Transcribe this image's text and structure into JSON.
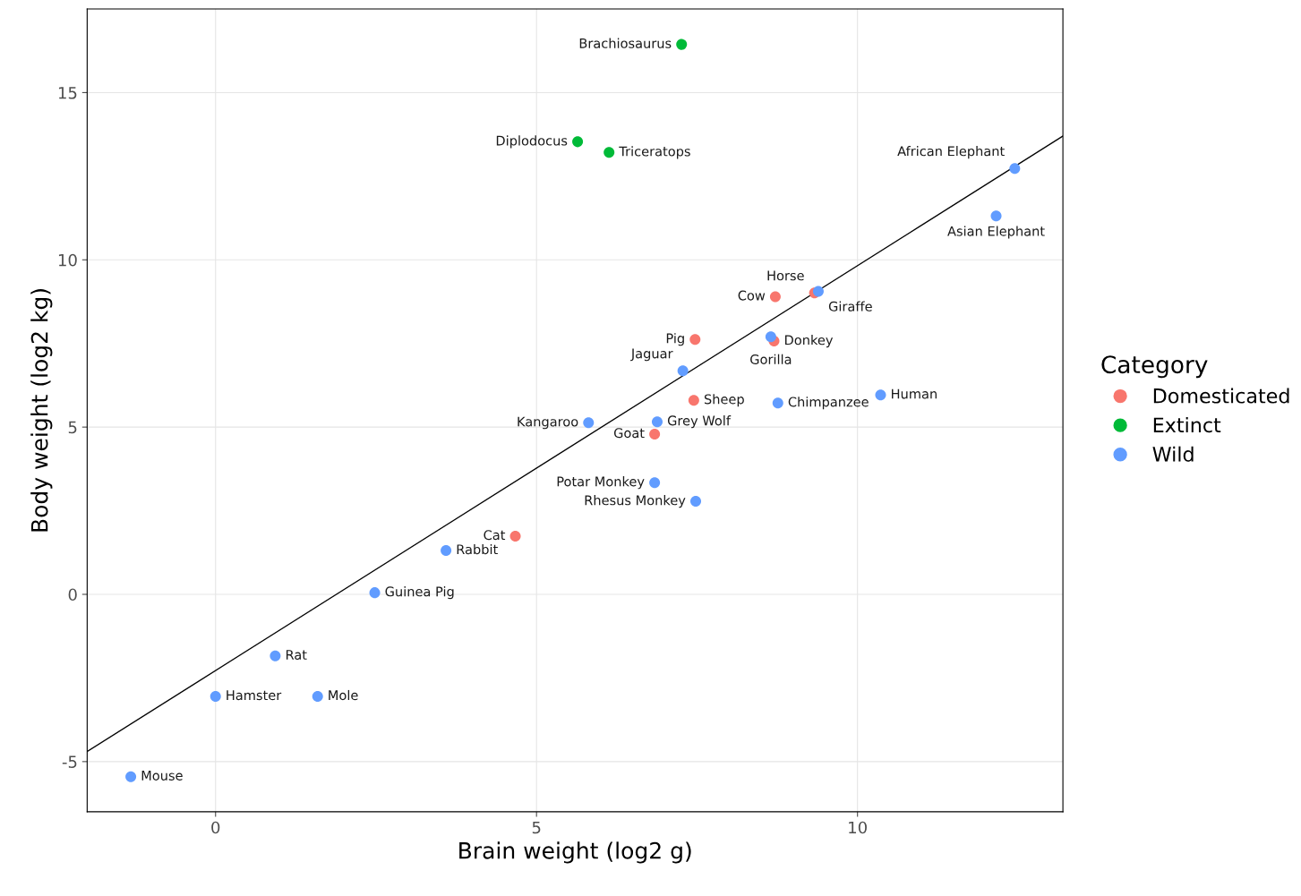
{
  "chart_data": {
    "type": "scatter",
    "xlabel": "Brain weight (log2 g)",
    "ylabel": "Body weight (log2 kg)",
    "legend_title": "Category",
    "xlim": [
      -2,
      13.2
    ],
    "ylim": [
      -6.5,
      17.5
    ],
    "xticks": [
      0,
      5,
      10
    ],
    "yticks": [
      -5,
      0,
      5,
      10,
      15
    ],
    "grid": true,
    "legend": "right",
    "marker": "circle",
    "series": [
      {
        "name": "Domesticated",
        "color": "#f8766d",
        "x": [
          9.33,
          8.72,
          7.47,
          8.7,
          7.45,
          6.84,
          4.67
        ],
        "values": [
          9.01,
          8.9,
          7.62,
          7.57,
          5.8,
          4.79,
          1.74
        ]
      },
      {
        "name": "Extinct",
        "color": "#00ba38",
        "x": [
          7.26,
          5.64,
          6.13
        ],
        "values": [
          16.44,
          13.53,
          13.21
        ]
      },
      {
        "name": "Wild",
        "color": "#619cff",
        "x": [
          12.45,
          12.16,
          9.39,
          8.65,
          7.28,
          8.76,
          10.36,
          6.88,
          5.81,
          6.84,
          7.48,
          3.59,
          2.48,
          0.93,
          0.0,
          1.59,
          -1.32
        ],
        "values": [
          12.73,
          11.31,
          9.06,
          7.7,
          6.68,
          5.72,
          5.96,
          5.16,
          5.13,
          3.34,
          2.78,
          1.31,
          0.05,
          -1.84,
          -3.05,
          -3.05,
          -5.45
        ]
      },
      {
        "type": "line",
        "marker": "none",
        "color": "#000000",
        "x": [
          -2,
          13.2
        ],
        "values": [
          -4.7,
          13.7
        ]
      }
    ],
    "annotations": [
      {
        "text": "Horse",
        "x": 9.33,
        "y": 9.01
      },
      {
        "text": "Cow",
        "x": 8.72,
        "y": 8.9
      },
      {
        "text": "Pig",
        "x": 7.47,
        "y": 7.62
      },
      {
        "text": "Donkey",
        "x": 8.7,
        "y": 7.57
      },
      {
        "text": "Sheep",
        "x": 7.45,
        "y": 5.8
      },
      {
        "text": "Goat",
        "x": 6.84,
        "y": 4.79
      },
      {
        "text": "Cat",
        "x": 4.67,
        "y": 1.74
      },
      {
        "text": "Brachiosaurus",
        "x": 7.26,
        "y": 16.44
      },
      {
        "text": "Diplodocus",
        "x": 5.64,
        "y": 13.53
      },
      {
        "text": "Triceratops",
        "x": 6.13,
        "y": 13.21
      },
      {
        "text": "African Elephant",
        "x": 12.45,
        "y": 12.73
      },
      {
        "text": "Asian Elephant",
        "x": 12.16,
        "y": 11.31
      },
      {
        "text": "Giraffe",
        "x": 9.39,
        "y": 9.06
      },
      {
        "text": "Gorilla",
        "x": 8.65,
        "y": 7.7
      },
      {
        "text": "Jaguar",
        "x": 7.28,
        "y": 6.68
      },
      {
        "text": "Chimpanzee",
        "x": 8.76,
        "y": 5.72
      },
      {
        "text": "Human",
        "x": 10.36,
        "y": 5.96
      },
      {
        "text": "Grey Wolf",
        "x": 6.88,
        "y": 5.16
      },
      {
        "text": "Kangaroo",
        "x": 5.81,
        "y": 5.13
      },
      {
        "text": "Potar Monkey",
        "x": 6.84,
        "y": 3.34
      },
      {
        "text": "Rhesus Monkey",
        "x": 7.48,
        "y": 2.78
      },
      {
        "text": "Rabbit",
        "x": 3.59,
        "y": 1.31
      },
      {
        "text": "Guinea Pig",
        "x": 2.48,
        "y": 0.05
      },
      {
        "text": "Rat",
        "x": 0.93,
        "y": -1.84
      },
      {
        "text": "Hamster",
        "x": 0.0,
        "y": -3.05
      },
      {
        "text": "Mole",
        "x": 1.59,
        "y": -3.05
      },
      {
        "text": "Mouse",
        "x": -1.32,
        "y": -5.45
      }
    ]
  }
}
